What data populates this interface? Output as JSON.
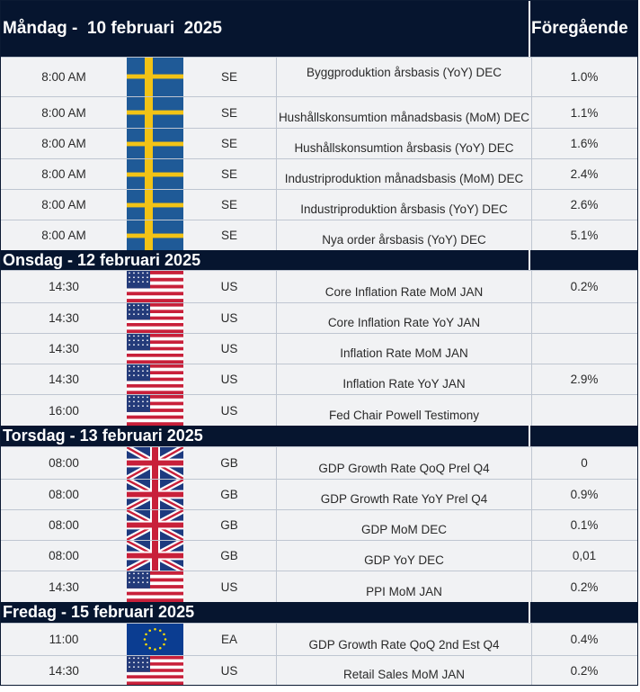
{
  "prev_header": "Föregående",
  "days": [
    {
      "title": "Måndag -  10 februari  2025",
      "rows": [
        {
          "time": "8:00 AM",
          "flag": "sweden-flag-icon",
          "country": "SE",
          "event": "Byggproduktion årsbasis (YoY) DEC",
          "prev": "1.0%"
        },
        {
          "time": "8:00 AM",
          "flag": "sweden-flag-icon",
          "country": "SE",
          "event": "Hushållskonsumtion månadsbasis (MoM) DEC",
          "prev": "1.1%"
        },
        {
          "time": "8:00 AM",
          "flag": "sweden-flag-icon",
          "country": "SE",
          "event": "Hushållskonsumtion årsbasis (YoY) DEC",
          "prev": "1.6%"
        },
        {
          "time": "8:00 AM",
          "flag": "sweden-flag-icon",
          "country": "SE",
          "event": "Industriproduktion månadsbasis (MoM) DEC",
          "prev": "2.4%"
        },
        {
          "time": "8:00 AM",
          "flag": "sweden-flag-icon",
          "country": "SE",
          "event": "Industriproduktion årsbasis (YoY) DEC",
          "prev": "2.6%"
        },
        {
          "time": "8:00 AM",
          "flag": "sweden-flag-icon",
          "country": "SE",
          "event": "Nya order årsbasis (YoY) DEC",
          "prev": "5.1%"
        }
      ]
    },
    {
      "title": "Onsdag - 12 februari 2025",
      "rows": [
        {
          "time": "14:30",
          "flag": "usa-flag-icon",
          "country": "US",
          "event": "Core Inflation Rate MoM JAN",
          "prev": "0.2%"
        },
        {
          "time": "14:30",
          "flag": "usa-flag-icon",
          "country": "US",
          "event": "Core Inflation Rate YoY JAN",
          "prev": ""
        },
        {
          "time": "14:30",
          "flag": "usa-flag-icon",
          "country": "US",
          "event": "Inflation Rate MoM JAN",
          "prev": ""
        },
        {
          "time": "14:30",
          "flag": "usa-flag-icon",
          "country": "US",
          "event": "Inflation Rate YoY JAN",
          "prev": "2.9%"
        },
        {
          "time": "16:00",
          "flag": "usa-flag-icon",
          "country": "US",
          "event": "Fed Chair Powell Testimony",
          "prev": ""
        }
      ]
    },
    {
      "title": "Torsdag - 13 februari 2025",
      "rows": [
        {
          "time": "08:00",
          "flag": "uk-flag-icon",
          "country": "GB",
          "event": "GDP Growth Rate QoQ Prel Q4",
          "prev": "0"
        },
        {
          "time": "08:00",
          "flag": "uk-flag-icon",
          "country": "GB",
          "event": "GDP Growth Rate YoY Prel Q4",
          "prev": "0.9%"
        },
        {
          "time": "08:00",
          "flag": "uk-flag-icon",
          "country": "GB",
          "event": "GDP MoM DEC",
          "prev": "0.1%"
        },
        {
          "time": "08:00",
          "flag": "uk-flag-icon",
          "country": "GB",
          "event": "GDP YoY DEC",
          "prev": "0,01"
        },
        {
          "time": "14:30",
          "flag": "usa-flag-icon",
          "country": "US",
          "event": "PPI MoM JAN",
          "prev": "0.2%"
        }
      ]
    },
    {
      "title": "Fredag - 15 februari 2025",
      "rows": [
        {
          "time": "11:00",
          "flag": "eu-flag-icon",
          "country": "EA",
          "event": "GDP Growth Rate QoQ 2nd Est Q4",
          "prev": "0.4%"
        },
        {
          "time": "14:30",
          "flag": "usa-flag-icon",
          "country": "US",
          "event": "Retail Sales MoM JAN",
          "prev": "0.2%"
        }
      ]
    }
  ]
}
